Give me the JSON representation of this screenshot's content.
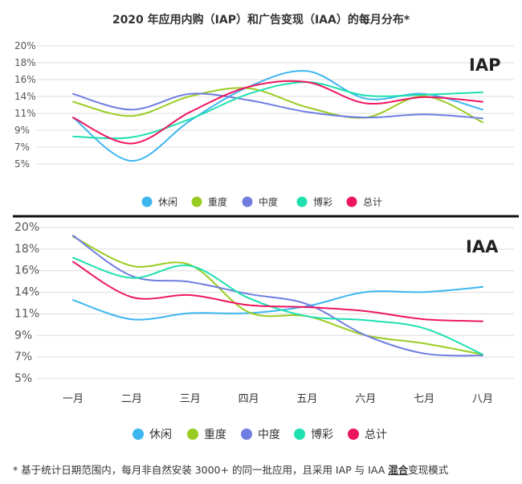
{
  "title": "2020 年应用内购（IAP）和广告变现（IAA）的每月分布*",
  "footnote": {
    "before": "* 基于统计日期范围内，每月非自然安装 3000+ 的同一批应用，且采用 IAP 与 IAA ",
    "bold": "混合",
    "after": "变现模式"
  },
  "colors": {
    "休闲": "#3db6f0",
    "重度": "#99cc22",
    "中度": "#6f7de0",
    "博彩": "#1ee0b0",
    "总计": "#ee1660"
  },
  "chart_data": [
    {
      "type": "line",
      "label": "IAP",
      "yticks": [
        "20%",
        "18%",
        "16%",
        "14%",
        "11%",
        "9%",
        "7%",
        "5%"
      ],
      "ylim": [
        5,
        20
      ],
      "categories": [
        "一月",
        "二月",
        "三月",
        "四月",
        "五月",
        "六月",
        "七月",
        "八月"
      ],
      "legend": [
        "休闲",
        "重度",
        "中度",
        "博彩",
        "总计"
      ],
      "series": [
        {
          "name": "休闲",
          "values": [
            10.9,
            5.4,
            10.5,
            14.8,
            16.8,
            13.3,
            13.9,
            11.9
          ]
        },
        {
          "name": "重度",
          "values": [
            12.9,
            11.1,
            13.6,
            14.6,
            12.2,
            10.9,
            13.6,
            10.3
          ]
        },
        {
          "name": "中度",
          "values": [
            13.9,
            11.9,
            13.9,
            13.1,
            11.6,
            10.9,
            11.3,
            10.8
          ]
        },
        {
          "name": "博彩",
          "values": [
            8.5,
            8.4,
            10.7,
            13.9,
            15.4,
            13.7,
            13.8,
            14.1
          ]
        },
        {
          "name": "总计",
          "values": [
            10.9,
            7.6,
            11.6,
            14.8,
            15.4,
            12.7,
            13.5,
            12.9
          ]
        }
      ]
    },
    {
      "type": "line",
      "label": "IAA",
      "yticks": [
        "20%",
        "18%",
        "16%",
        "14%",
        "11%",
        "9%",
        "7%",
        "5%"
      ],
      "ylim": [
        5,
        20
      ],
      "categories": [
        "一月",
        "二月",
        "三月",
        "四月",
        "五月",
        "六月",
        "七月",
        "八月"
      ],
      "legend": [
        "休闲",
        "重度",
        "中度",
        "博彩",
        "总计"
      ],
      "series": [
        {
          "name": "休闲",
          "values": [
            12.8,
            10.9,
            11.5,
            11.5,
            12.2,
            13.6,
            13.6,
            14.1
          ]
        },
        {
          "name": "重度",
          "values": [
            19.1,
            16.2,
            16.3,
            11.6,
            11.2,
            9.3,
            8.5,
            7.4
          ]
        },
        {
          "name": "中度",
          "values": [
            19.2,
            15.2,
            14.6,
            13.4,
            12.4,
            9.3,
            7.5,
            7.3
          ]
        },
        {
          "name": "博彩",
          "values": [
            17.0,
            15.0,
            16.2,
            13.0,
            11.2,
            10.8,
            10.0,
            7.4
          ]
        },
        {
          "name": "总计",
          "values": [
            16.6,
            13.1,
            13.3,
            12.3,
            12.1,
            11.7,
            10.9,
            10.7
          ]
        }
      ]
    }
  ]
}
